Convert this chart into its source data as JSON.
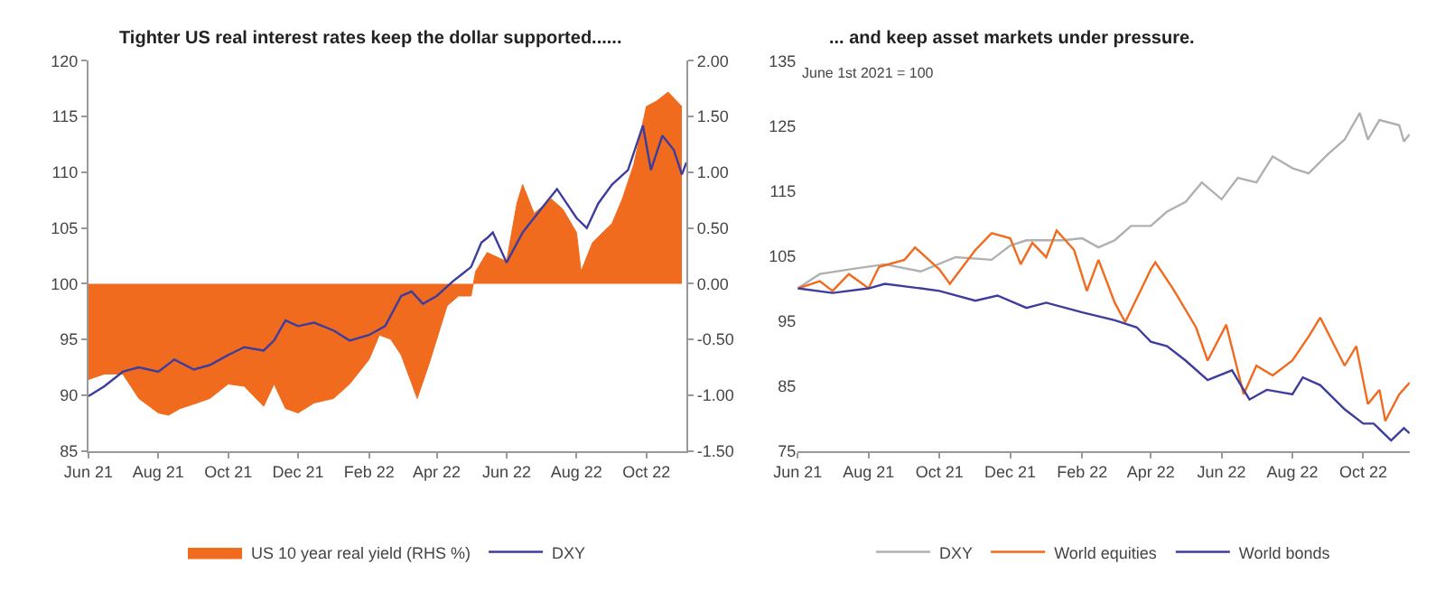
{
  "chart_data": [
    {
      "type": "line",
      "title": "Tighter US real interest rates keep the dollar supported......",
      "legend": "bottom",
      "marker": "none",
      "xlim": [
        "2021-06-01",
        "2022-11-05"
      ],
      "xticks": [
        {
          "value": "2021-06-01",
          "label": "Jun 21"
        },
        {
          "value": "2021-08-01",
          "label": "Aug 21"
        },
        {
          "value": "2021-10-01",
          "label": "Oct 21"
        },
        {
          "value": "2021-12-01",
          "label": "Dec 21"
        },
        {
          "value": "2022-02-01",
          "label": "Feb 22"
        },
        {
          "value": "2022-04-01",
          "label": "Apr 22"
        },
        {
          "value": "2022-06-01",
          "label": "Jun 22"
        },
        {
          "value": "2022-08-01",
          "label": "Aug 22"
        },
        {
          "value": "2022-10-01",
          "label": "Oct 22"
        }
      ],
      "ylim": [
        85,
        120
      ],
      "yticks": [
        85,
        90,
        95,
        100,
        105,
        110,
        115,
        120
      ],
      "y2lim": [
        -1.5,
        2
      ],
      "y2ticks": [
        {
          "value": -1.5,
          "label": "-1.50"
        },
        {
          "value": -1,
          "label": "-1.00"
        },
        {
          "value": -0.5,
          "label": "-0.50"
        },
        {
          "value": 0,
          "label": "0.00"
        },
        {
          "value": 0.5,
          "label": "0.50"
        },
        {
          "value": 1,
          "label": "1.00"
        },
        {
          "value": 1.5,
          "label": "1.50"
        },
        {
          "value": 2,
          "label": "2.00"
        }
      ],
      "series": [
        {
          "name": "US 10 year real yield (RHS %)",
          "type": "area",
          "axis": "y2",
          "color": "#f06b1e",
          "x": [
            "2021-06-01",
            "2021-06-15",
            "2021-07-01",
            "2021-07-15",
            "2021-08-01",
            "2021-08-10",
            "2021-08-20",
            "2021-09-01",
            "2021-09-15",
            "2021-10-01",
            "2021-10-15",
            "2021-11-01",
            "2021-11-10",
            "2021-11-20",
            "2021-12-01",
            "2021-12-15",
            "2022-01-01",
            "2022-01-15",
            "2022-02-01",
            "2022-02-10",
            "2022-02-20",
            "2022-03-01",
            "2022-03-15",
            "2022-03-25",
            "2022-04-01",
            "2022-04-10",
            "2022-04-20",
            "2022-05-01",
            "2022-05-05",
            "2022-05-15",
            "2022-06-01",
            "2022-06-10",
            "2022-06-15",
            "2022-06-25",
            "2022-07-10",
            "2022-07-20",
            "2022-08-01",
            "2022-08-05",
            "2022-08-15",
            "2022-09-01",
            "2022-09-10",
            "2022-09-20",
            "2022-10-01",
            "2022-10-10",
            "2022-10-20",
            "2022-11-01"
          ],
          "values": [
            -0.86,
            -0.81,
            -0.81,
            -1.03,
            -1.16,
            -1.18,
            -1.12,
            -1.08,
            -1.03,
            -0.9,
            -0.92,
            -1.1,
            -0.9,
            -1.12,
            -1.16,
            -1.07,
            -1.03,
            -0.9,
            -0.68,
            -0.46,
            -0.5,
            -0.64,
            -1.03,
            -0.73,
            -0.5,
            -0.2,
            -0.11,
            -0.11,
            0.11,
            0.28,
            0.2,
            0.72,
            0.89,
            0.63,
            0.76,
            0.67,
            0.46,
            0.11,
            0.37,
            0.54,
            0.76,
            1.07,
            1.59,
            1.64,
            1.72,
            1.59
          ]
        },
        {
          "name": "DXY",
          "type": "line",
          "color": "#3d3d9e",
          "x": [
            "2021-06-01",
            "2021-06-15",
            "2021-07-01",
            "2021-07-15",
            "2021-08-01",
            "2021-08-15",
            "2021-09-01",
            "2021-09-15",
            "2021-10-01",
            "2021-10-15",
            "2021-11-01",
            "2021-11-10",
            "2021-11-20",
            "2021-12-01",
            "2021-12-15",
            "2022-01-01",
            "2022-01-15",
            "2022-02-01",
            "2022-02-15",
            "2022-03-01",
            "2022-03-10",
            "2022-03-20",
            "2022-04-01",
            "2022-04-15",
            "2022-05-01",
            "2022-05-10",
            "2022-05-15",
            "2022-05-20",
            "2022-06-01",
            "2022-06-15",
            "2022-07-01",
            "2022-07-15",
            "2022-08-01",
            "2022-08-10",
            "2022-08-20",
            "2022-09-01",
            "2022-09-15",
            "2022-09-28",
            "2022-10-05",
            "2022-10-15",
            "2022-10-25",
            "2022-11-01",
            "2022-11-05"
          ],
          "values": [
            89.9,
            90.8,
            92.1,
            92.5,
            92.1,
            93.2,
            92.3,
            92.7,
            93.6,
            94.3,
            94.0,
            94.9,
            96.7,
            96.2,
            96.5,
            95.8,
            94.9,
            95.4,
            96.2,
            98.9,
            99.3,
            98.2,
            98.9,
            100.2,
            101.5,
            103.7,
            104.1,
            104.6,
            101.9,
            104.6,
            106.7,
            108.5,
            105.9,
            105.0,
            107.2,
            108.9,
            110.2,
            114.2,
            110.2,
            113.3,
            112.0,
            109.8,
            110.9
          ]
        }
      ]
    },
    {
      "type": "line",
      "title": "... and keep asset markets under pressure.",
      "subtitle": "June 1st 2021 = 100",
      "legend": "bottom",
      "marker": "none",
      "xlim": [
        "2021-06-01",
        "2022-11-10"
      ],
      "xticks": [
        {
          "value": "2021-06-01",
          "label": "Jun 21"
        },
        {
          "value": "2021-08-01",
          "label": "Aug 21"
        },
        {
          "value": "2021-10-01",
          "label": "Oct 21"
        },
        {
          "value": "2021-12-01",
          "label": "Dec 21"
        },
        {
          "value": "2022-02-01",
          "label": "Feb 22"
        },
        {
          "value": "2022-04-01",
          "label": "Apr 22"
        },
        {
          "value": "2022-06-01",
          "label": "Jun 22"
        },
        {
          "value": "2022-08-01",
          "label": "Aug 22"
        },
        {
          "value": "2022-10-01",
          "label": "Oct 22"
        }
      ],
      "ylim": [
        75,
        135
      ],
      "yticks": [
        75,
        85,
        95,
        105,
        115,
        125,
        135
      ],
      "series": [
        {
          "name": "DXY",
          "color": "#b0b0b0",
          "x": [
            "2021-06-01",
            "2021-06-20",
            "2021-07-15",
            "2021-08-15",
            "2021-09-15",
            "2021-10-15",
            "2021-11-15",
            "2021-12-01",
            "2021-12-15",
            "2022-01-15",
            "2022-02-01",
            "2022-02-15",
            "2022-03-01",
            "2022-03-15",
            "2022-04-01",
            "2022-04-15",
            "2022-05-01",
            "2022-05-15",
            "2022-06-01",
            "2022-06-15",
            "2022-07-01",
            "2022-07-15",
            "2022-08-01",
            "2022-08-15",
            "2022-09-01",
            "2022-09-15",
            "2022-09-28",
            "2022-10-05",
            "2022-10-15",
            "2022-11-01",
            "2022-11-05",
            "2022-11-10"
          ],
          "values": [
            100.0,
            102.2,
            102.9,
            103.7,
            102.6,
            104.8,
            104.4,
            106.6,
            107.4,
            107.4,
            107.7,
            106.3,
            107.4,
            109.6,
            109.6,
            111.8,
            113.3,
            116.3,
            113.7,
            117.0,
            116.3,
            120.3,
            118.5,
            117.7,
            120.7,
            122.9,
            127.0,
            122.9,
            125.9,
            125.1,
            122.6,
            123.7
          ]
        },
        {
          "name": "World equities",
          "color": "#f06b1e",
          "x": [
            "2021-06-01",
            "2021-06-20",
            "2021-07-01",
            "2021-07-15",
            "2021-08-01",
            "2021-08-10",
            "2021-09-01",
            "2021-09-10",
            "2021-10-01",
            "2021-10-10",
            "2021-11-01",
            "2021-11-15",
            "2021-12-01",
            "2021-12-10",
            "2021-12-20",
            "2022-01-01",
            "2022-01-10",
            "2022-01-25",
            "2022-02-05",
            "2022-02-15",
            "2022-03-01",
            "2022-03-10",
            "2022-04-01",
            "2022-04-05",
            "2022-04-20",
            "2022-05-10",
            "2022-05-20",
            "2022-06-05",
            "2022-06-20",
            "2022-07-01",
            "2022-07-15",
            "2022-08-01",
            "2022-08-15",
            "2022-08-25",
            "2022-09-15",
            "2022-09-25",
            "2022-10-05",
            "2022-10-15",
            "2022-10-20",
            "2022-11-01",
            "2022-11-10"
          ],
          "values": [
            100.0,
            101.1,
            99.6,
            102.2,
            100.0,
            103.3,
            104.4,
            106.3,
            102.9,
            100.7,
            105.9,
            108.5,
            107.7,
            103.7,
            107.0,
            104.8,
            108.9,
            105.9,
            99.6,
            104.4,
            97.8,
            94.8,
            102.9,
            104.0,
            100.0,
            94.0,
            88.9,
            94.4,
            83.7,
            88.1,
            86.6,
            88.9,
            92.6,
            95.5,
            88.1,
            91.1,
            82.2,
            84.4,
            79.6,
            83.7,
            85.5
          ]
        },
        {
          "name": "World bonds",
          "color": "#3d3d9e",
          "x": [
            "2021-06-01",
            "2021-07-01",
            "2021-08-01",
            "2021-08-15",
            "2021-09-15",
            "2021-10-01",
            "2021-11-01",
            "2021-11-20",
            "2021-12-15",
            "2022-01-01",
            "2022-02-01",
            "2022-03-01",
            "2022-03-20",
            "2022-04-01",
            "2022-04-15",
            "2022-05-01",
            "2022-05-20",
            "2022-06-10",
            "2022-06-25",
            "2022-07-10",
            "2022-08-01",
            "2022-08-10",
            "2022-08-25",
            "2022-09-15",
            "2022-10-01",
            "2022-10-10",
            "2022-10-25",
            "2022-11-05",
            "2022-11-10"
          ],
          "values": [
            100.0,
            99.3,
            100.0,
            100.7,
            100.0,
            99.6,
            98.1,
            98.9,
            97.0,
            97.8,
            96.3,
            95.1,
            94.0,
            91.8,
            91.1,
            88.9,
            85.9,
            87.4,
            82.9,
            84.4,
            83.7,
            86.3,
            85.1,
            81.4,
            79.2,
            79.2,
            76.6,
            78.5,
            77.7
          ]
        }
      ]
    }
  ]
}
